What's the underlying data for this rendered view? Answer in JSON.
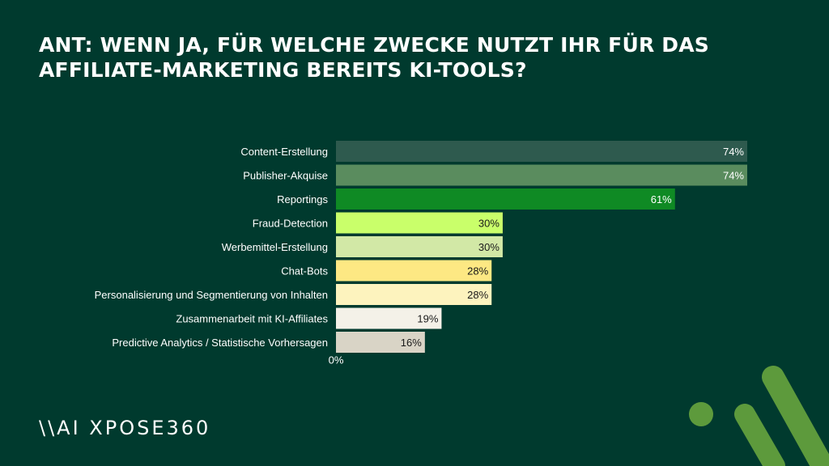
{
  "title_lines": [
    "ANT: WENN JA, FÜR WELCHE ZWECKE NUTZT IHR FÜR DAS",
    "AFFILIATE-MARKETING BEREITS KI-TOOLS?"
  ],
  "brand": "\\\\AI XPOSE360",
  "colors": {
    "background": "#003a2e",
    "decor": "#5d9a3c"
  },
  "chart_data": {
    "type": "bar",
    "orientation": "horizontal",
    "title": "ANT: WENN JA, FÜR WELCHE ZWECKE NUTZT IHR FÜR DAS AFFILIATE-MARKETING BEREITS KI-TOOLS?",
    "categories": [
      "Content-Erstellung",
      "Publisher-Akquise",
      "Reportings",
      "Fraud-Detection",
      "Werbemittel-Erstellung",
      "Chat-Bots",
      "Personalisierung und Segmentierung von Inhalten",
      "Zusammenarbeit mit KI-Affiliates",
      "Predictive Analytics / Statistische Vorhersagen"
    ],
    "values": [
      74,
      74,
      61,
      30,
      30,
      28,
      28,
      19,
      16
    ],
    "value_labels": [
      "74%",
      "74%",
      "61%",
      "30%",
      "30%",
      "28%",
      "28%",
      "19%",
      "16%"
    ],
    "bar_colors": [
      "#2e5a4e",
      "#5a8c5e",
      "#0f8a24",
      "#c9ff6a",
      "#d2e8a6",
      "#fde883",
      "#fdf3be",
      "#f4f1e8",
      "#d9d4c6"
    ],
    "label_colors": [
      "#ffffff",
      "#ffffff",
      "#ffffff",
      "#1a1a1a",
      "#1a1a1a",
      "#1a1a1a",
      "#1a1a1a",
      "#1a1a1a",
      "#1a1a1a"
    ],
    "x_tick_labels": [
      "0%"
    ],
    "xlim": [
      0,
      74
    ],
    "grid": false,
    "legend": "none"
  }
}
